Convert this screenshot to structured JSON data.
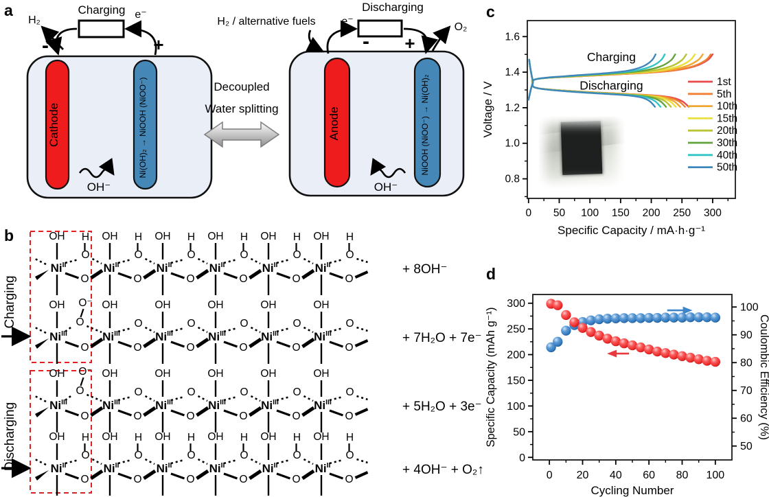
{
  "figure": {
    "panel_labels": {
      "a": "a",
      "b": "b",
      "c": "c",
      "d": "d"
    }
  },
  "panel_a": {
    "left_cell": {
      "title": "Charging",
      "gas": "H₂",
      "electron": "e⁻",
      "minus": "-",
      "plus": "+",
      "red_electrode": "Cathode",
      "blue_electrode": "Ni(OH)₂ → NiOOH (NiOO⁻)",
      "ion": "OH⁻"
    },
    "middle": {
      "line1": "Decoupled",
      "line2": "Water splitting"
    },
    "right_cell": {
      "title": "Discharging",
      "fuel": "H₂ / alternative fuels",
      "electron": "e⁻",
      "minus": "-",
      "plus": "+",
      "gas": "O₂",
      "red_electrode": "Anode",
      "blue_electrode": "NiOOH (NiOO⁻) → Ni(OH)₂",
      "ion": "OH⁻"
    },
    "colors": {
      "cell_fill": "#eaeef7",
      "electrode_red": "#ee1c1c",
      "electrode_blue": "#4587b7"
    }
  },
  "panel_b": {
    "sections": [
      {
        "label": "Charging"
      },
      {
        "label": "Discharging"
      }
    ],
    "rows": [
      {
        "ni": "Ni",
        "ox": "II",
        "bridge_h": true,
        "peroxo": false,
        "equation": "+ 8OH⁻"
      },
      {
        "ni": "Ni",
        "ox": "III",
        "bridge_h": false,
        "peroxo": true,
        "equation": "+ 7H₂O + 7e⁻"
      },
      {
        "ni": "Ni",
        "ox": "III",
        "bridge_h": false,
        "peroxo": true,
        "equation": "+ 5H₂O + 3e⁻"
      },
      {
        "ni": "Ni",
        "ox": "II",
        "bridge_h": true,
        "peroxo": false,
        "equation": "+ 4OH⁻ + O₂↑"
      }
    ],
    "atom_labels": {
      "hydroxyl": "OH",
      "h": "H",
      "o": "O",
      "peroxo_top": "O⁻"
    },
    "units_per_row": 6,
    "highlight_color": "#e02020"
  },
  "chart_data": [
    {
      "id": "c",
      "type": "line",
      "xlabel": "Specific Capacity / mA·h·g⁻¹",
      "ylabel": "Voltage / V",
      "xlim": [
        -2,
        337
      ],
      "ylim": [
        0.69,
        1.69
      ],
      "xticks": [
        0,
        50,
        100,
        150,
        200,
        250,
        300
      ],
      "yticks": [
        0.8,
        1.0,
        1.2,
        1.4,
        1.6
      ],
      "annotations": [
        {
          "text": "Charging",
          "x": 135,
          "y": 1.463
        },
        {
          "text": "Discharging",
          "x": 135,
          "y": 1.302
        }
      ],
      "legend_position": "right",
      "series": [
        {
          "name": "1st",
          "color": "#e84a4a",
          "charge_end": 300,
          "discharge_end": 261
        },
        {
          "name": "5th",
          "color": "#f08033",
          "charge_end": 297,
          "discharge_end": 255
        },
        {
          "name": "10th",
          "color": "#efa832",
          "charge_end": 284,
          "discharge_end": 247
        },
        {
          "name": "15th",
          "color": "#eae13e",
          "charge_end": 271,
          "discharge_end": 240
        },
        {
          "name": "20th",
          "color": "#b9c334",
          "charge_end": 257,
          "discharge_end": 232
        },
        {
          "name": "30th",
          "color": "#63a33c",
          "charge_end": 239,
          "discharge_end": 224
        },
        {
          "name": "40th",
          "color": "#32c5c8",
          "charge_end": 222,
          "discharge_end": 215
        },
        {
          "name": "50th",
          "color": "#3f86ba",
          "charge_end": 207,
          "discharge_end": 206
        }
      ],
      "profile": {
        "charge_start_v": 1.245,
        "charge_plateau_v": [
          1.362,
          1.408
        ],
        "charge_peak_v": 1.5,
        "discharge_start_v": 1.47,
        "discharge_plateau_v": [
          1.312,
          1.268
        ],
        "discharge_end_v": 1.205
      }
    },
    {
      "id": "d",
      "type": "scatter",
      "xlabel": "Cycling Number",
      "ylabel_left": "Specific Capacity (mAh g⁻¹)",
      "ylabel_right": "Coulombic Efficiency (%)",
      "xlim": [
        -10,
        110
      ],
      "ylim_left": [
        -5,
        317
      ],
      "ylim_right": [
        45,
        104.5
      ],
      "xticks": [
        0,
        20,
        40,
        60,
        80,
        100
      ],
      "yticks_left": [
        0,
        50,
        100,
        150,
        200,
        250,
        300
      ],
      "yticks_right": [
        50,
        60,
        70,
        80,
        90,
        100
      ],
      "cycles": [
        1,
        5,
        10,
        15,
        20,
        25,
        30,
        35,
        40,
        45,
        50,
        55,
        60,
        65,
        70,
        75,
        80,
        85,
        90,
        95,
        100
      ],
      "series": [
        {
          "name": "Specific Capacity",
          "axis": "left",
          "color": "#ee3333",
          "values": [
            299,
            296,
            277,
            263,
            252,
            244,
            237,
            231,
            226,
            222,
            218,
            214,
            210,
            206,
            203,
            200,
            197,
            194,
            191,
            188,
            186
          ]
        },
        {
          "name": "Coulombic Efficiency",
          "axis": "right",
          "color": "#3d7fc1",
          "values": [
            85.5,
            87.5,
            91.5,
            93.5,
            94.6,
            95.2,
            95.6,
            95.8,
            95.9,
            96.0,
            96.0,
            96.0,
            96.1,
            96.1,
            96.2,
            96.2,
            96.2,
            96.3,
            96.3,
            96.3,
            96.2
          ]
        }
      ],
      "arrows": [
        {
          "color": "#e8393d",
          "direction": "left",
          "axis": "left",
          "x": [
            36,
            48
          ],
          "y": 202
        },
        {
          "color": "#3d85c8",
          "direction": "right",
          "axis": "right",
          "x": [
            71,
            85
          ],
          "y": 98.8
        }
      ]
    }
  ]
}
